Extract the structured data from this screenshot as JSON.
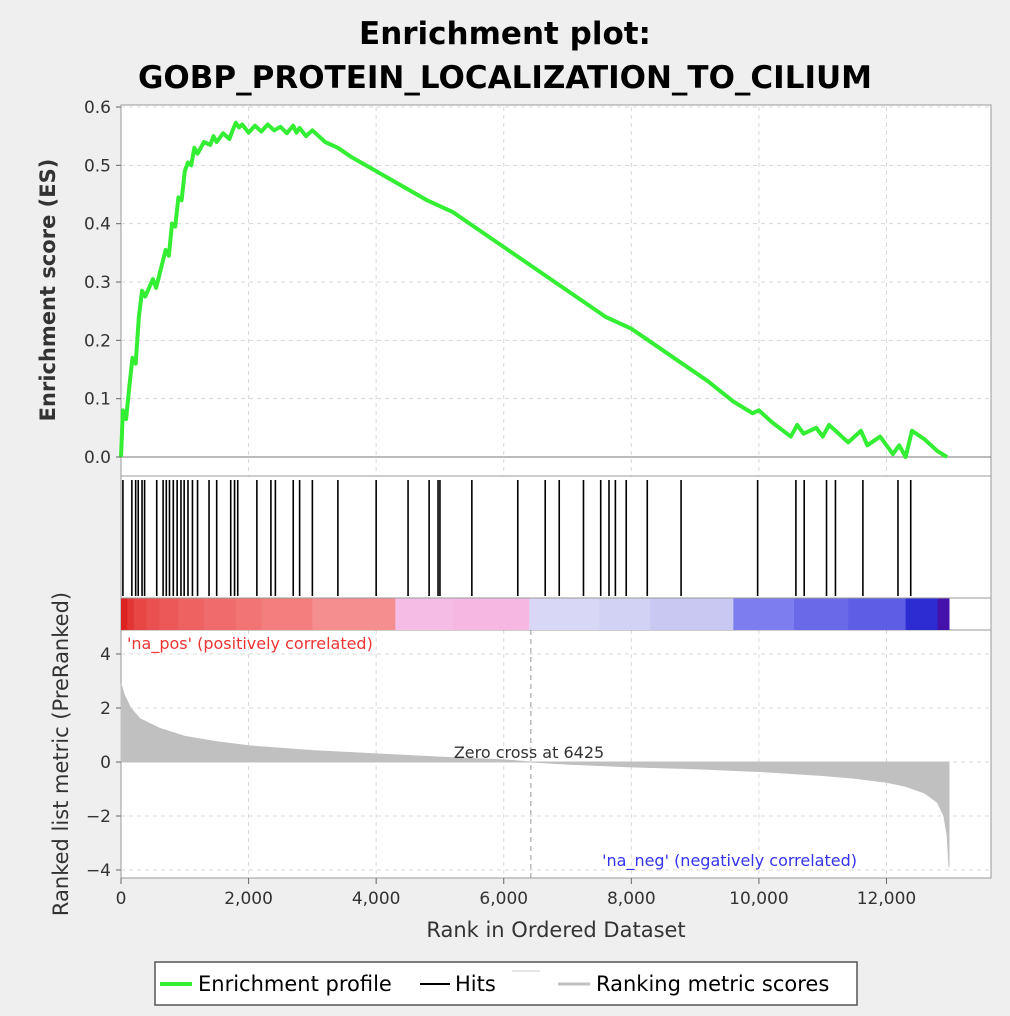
{
  "title": {
    "line1": "Enrichment plot:",
    "line2": "GOBP_PROTEIN_LOCALIZATION_TO_CILIUM"
  },
  "colors": {
    "es_line": "#33ee33",
    "hits": "#000000",
    "metric_fill": "#c0c0c0",
    "pos_label": "#ee3333",
    "neg_label": "#3333ee",
    "background": "#efefef",
    "panel": "#ffffff",
    "grid": "#d8d8d8"
  },
  "chart_data": [
    {
      "type": "line",
      "name": "enrichment-profile",
      "ylabel": "Enrichment score (ES)",
      "xlim": [
        0,
        13000
      ],
      "ylim": [
        0.0,
        0.6
      ],
      "yticks": [
        "0.0",
        "0.1",
        "0.2",
        "0.3",
        "0.4",
        "0.5",
        "0.6"
      ],
      "grid": true,
      "x": [
        0,
        30,
        80,
        130,
        180,
        230,
        280,
        330,
        380,
        500,
        550,
        700,
        750,
        800,
        850,
        900,
        950,
        1000,
        1050,
        1100,
        1150,
        1200,
        1300,
        1400,
        1450,
        1500,
        1600,
        1700,
        1750,
        1800,
        1850,
        1900,
        2000,
        2100,
        2200,
        2300,
        2400,
        2500,
        2600,
        2700,
        2750,
        2800,
        2900,
        3000,
        3200,
        3400,
        3600,
        4000,
        4400,
        4800,
        5000,
        5200,
        5600,
        6000,
        6400,
        6800,
        7200,
        7600,
        8000,
        8400,
        8800,
        9200,
        9600,
        9900,
        10000,
        10200,
        10500,
        10600,
        10700,
        10900,
        11000,
        11100,
        11200,
        11400,
        11600,
        11700,
        11900,
        12100,
        12200,
        12300,
        12400,
        12600,
        12800,
        12950
      ],
      "values": [
        0.0,
        0.08,
        0.065,
        0.12,
        0.17,
        0.16,
        0.24,
        0.285,
        0.275,
        0.305,
        0.29,
        0.355,
        0.345,
        0.4,
        0.395,
        0.445,
        0.44,
        0.49,
        0.505,
        0.5,
        0.53,
        0.52,
        0.54,
        0.535,
        0.55,
        0.54,
        0.555,
        0.545,
        0.56,
        0.573,
        0.565,
        0.57,
        0.556,
        0.568,
        0.558,
        0.57,
        0.56,
        0.566,
        0.555,
        0.568,
        0.556,
        0.564,
        0.55,
        0.56,
        0.54,
        0.53,
        0.515,
        0.49,
        0.465,
        0.44,
        0.43,
        0.42,
        0.39,
        0.36,
        0.33,
        0.3,
        0.27,
        0.24,
        0.22,
        0.19,
        0.16,
        0.13,
        0.095,
        0.075,
        0.08,
        0.06,
        0.035,
        0.055,
        0.04,
        0.05,
        0.035,
        0.055,
        0.045,
        0.025,
        0.045,
        0.02,
        0.035,
        0.005,
        0.02,
        0.0,
        0.045,
        0.03,
        0.01,
        0.0
      ]
    },
    {
      "type": "hits",
      "name": "hits",
      "positions": [
        30,
        170,
        230,
        270,
        330,
        370,
        560,
        660,
        710,
        760,
        820,
        880,
        940,
        990,
        1050,
        1120,
        1200,
        1380,
        1500,
        1720,
        1780,
        1830,
        2130,
        2350,
        2420,
        2700,
        2800,
        3000,
        3400,
        4000,
        4500,
        4830,
        4970,
        5000,
        5500,
        6220,
        6650,
        6870,
        7250,
        7520,
        7650,
        7750,
        7920,
        8250,
        8780,
        9980,
        10580,
        10710,
        11060,
        11200,
        11630,
        12180,
        12380
      ]
    },
    {
      "type": "area",
      "name": "ranking-metric",
      "ylabel": "Ranked list metric (PreRanked)",
      "xlabel": "Rank in Ordered Dataset",
      "xlim": [
        0,
        13000
      ],
      "ylim": [
        -4,
        4
      ],
      "xticks": [
        "0",
        "2,000",
        "4,000",
        "6,000",
        "8,000",
        "10,000",
        "12,000"
      ],
      "xtick_values": [
        0,
        2000,
        4000,
        6000,
        8000,
        10000,
        12000
      ],
      "yticks": [
        "4",
        "2",
        "0",
        "−2",
        "−4"
      ],
      "ytick_values": [
        4,
        2,
        0,
        -2,
        -4
      ],
      "x": [
        0,
        50,
        150,
        300,
        600,
        1000,
        1500,
        2000,
        3000,
        4000,
        5000,
        6000,
        6425,
        7000,
        8000,
        9000,
        10000,
        11000,
        11500,
        12000,
        12300,
        12600,
        12800,
        12900,
        12950,
        12980
      ],
      "values": [
        2.9,
        2.5,
        2.0,
        1.6,
        1.25,
        0.95,
        0.75,
        0.6,
        0.42,
        0.3,
        0.18,
        0.08,
        0.0,
        -0.08,
        -0.18,
        -0.25,
        -0.35,
        -0.5,
        -0.6,
        -0.75,
        -0.9,
        -1.15,
        -1.5,
        -2.0,
        -2.7,
        -3.9
      ],
      "zero_cross_label": "Zero cross at 6425",
      "zero_cross_x": 6425,
      "pos_label": "'na_pos' (positively correlated)",
      "neg_label": "'na_neg' (negatively correlated)"
    }
  ],
  "heatbar": {
    "x_breaks": [
      0,
      100,
      200,
      400,
      600,
      900,
      1300,
      1800,
      2200,
      3000,
      4300,
      5200,
      6400,
      7500,
      8300,
      9600,
      10550,
      11400,
      12300,
      12800,
      12980
    ],
    "colors": [
      "#dd2222",
      "#e43535",
      "#e84545",
      "#ea5050",
      "#ec5858",
      "#ee6262",
      "#f06c6c",
      "#f27474",
      "#f37e7e",
      "#f58e8e",
      "#f5bde6",
      "#f6b8e2",
      "#d8d8f6",
      "#d2d2f4",
      "#c8c8f2",
      "#7d7df0",
      "#6a6ae8",
      "#5d5de6",
      "#2c2cd2",
      "#4411aa"
    ]
  },
  "legend": {
    "items": [
      {
        "label": "Enrichment profile",
        "swatch": "es"
      },
      {
        "label": "Hits",
        "swatch": "hits"
      },
      {
        "label": "Ranking metric scores",
        "swatch": "metric"
      }
    ]
  }
}
